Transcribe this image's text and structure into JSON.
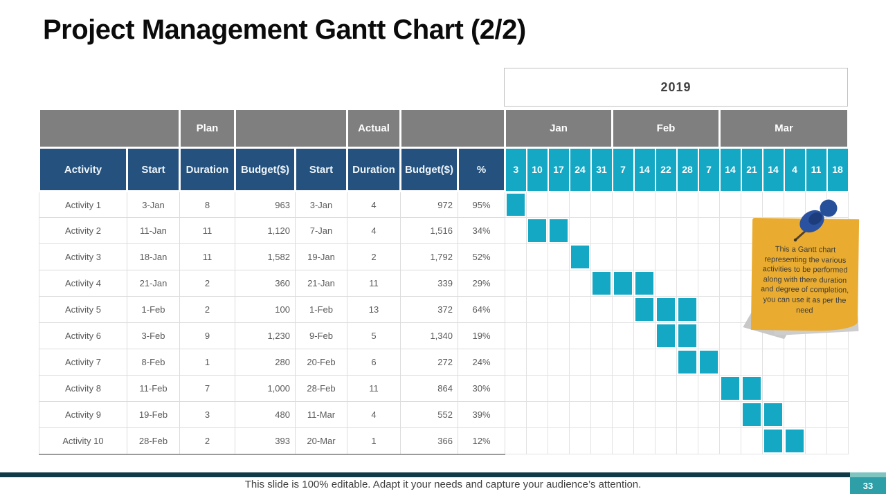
{
  "slide": {
    "title": "Project Management Gantt Chart (2/2)"
  },
  "chart_data": {
    "type": "table",
    "title": "Project Management Gantt Chart (2/2)",
    "year": "2019",
    "group_headers": {
      "plan": "Plan",
      "actual": "Actual"
    },
    "columns": [
      "Activity",
      "Start",
      "Duration",
      "Budget($)",
      "Start",
      "Duration",
      "Budget($)",
      "%"
    ],
    "months": [
      {
        "label": "Jan",
        "span": 5
      },
      {
        "label": "Feb",
        "span": 5
      },
      {
        "label": "Mar",
        "span": 6
      }
    ],
    "dates": [
      "3",
      "10",
      "17",
      "24",
      "31",
      "7",
      "14",
      "22",
      "28",
      "7",
      "14",
      "21",
      "14",
      "4",
      "11",
      "18"
    ],
    "rows": [
      {
        "cells": [
          "Activity 1",
          "3-Jan",
          "8",
          "963",
          "3-Jan",
          "4",
          "972",
          "95%"
        ],
        "bars": [
          0
        ]
      },
      {
        "cells": [
          "Activity 2",
          "11-Jan",
          "11",
          "1,120",
          "7-Jan",
          "4",
          "1,516",
          "34%"
        ],
        "bars": [
          1,
          2
        ]
      },
      {
        "cells": [
          "Activity 3",
          "18-Jan",
          "11",
          "1,582",
          "19-Jan",
          "2",
          "1,792",
          "52%"
        ],
        "bars": [
          3
        ]
      },
      {
        "cells": [
          "Activity 4",
          "21-Jan",
          "2",
          "360",
          "21-Jan",
          "11",
          "339",
          "29%"
        ],
        "bars": [
          4,
          5,
          6
        ]
      },
      {
        "cells": [
          "Activity 5",
          "1-Feb",
          "2",
          "100",
          "1-Feb",
          "13",
          "372",
          "64%"
        ],
        "bars": [
          6,
          7,
          8
        ]
      },
      {
        "cells": [
          "Activity 6",
          "3-Feb",
          "9",
          "1,230",
          "9-Feb",
          "5",
          "1,340",
          "19%"
        ],
        "bars": [
          7,
          8
        ]
      },
      {
        "cells": [
          "Activity 7",
          "8-Feb",
          "1",
          "280",
          "20-Feb",
          "6",
          "272",
          "24%"
        ],
        "bars": [
          8,
          9
        ]
      },
      {
        "cells": [
          "Activity 8",
          "11-Feb",
          "7",
          "1,000",
          "28-Feb",
          "11",
          "864",
          "30%"
        ],
        "bars": [
          10,
          11
        ]
      },
      {
        "cells": [
          "Activity 9",
          "19-Feb",
          "3",
          "480",
          "11-Mar",
          "4",
          "552",
          "39%"
        ],
        "bars": [
          11,
          12
        ]
      },
      {
        "cells": [
          "Activity 10",
          "28-Feb",
          "2",
          "393",
          "20-Mar",
          "1",
          "366",
          "12%"
        ],
        "bars": [
          12,
          13
        ]
      }
    ]
  },
  "note": {
    "text": "This a Gantt chart representing the various activities to be performed along with there duration and degree of completion,  you can use it as per the need"
  },
  "footer": {
    "text": "This slide is 100% editable. Adapt it your needs and capture your audience’s attention.",
    "page_number": "33"
  },
  "colors": {
    "header_blue": "#24517d",
    "header_gray": "#7f7f7f",
    "bar_cyan": "#14a8c5",
    "note_yellow": "#e9ac30",
    "footer_bar": "#0f3a46",
    "badge_teal": "#2f9fa7",
    "badge_light": "#7ec4c1"
  }
}
